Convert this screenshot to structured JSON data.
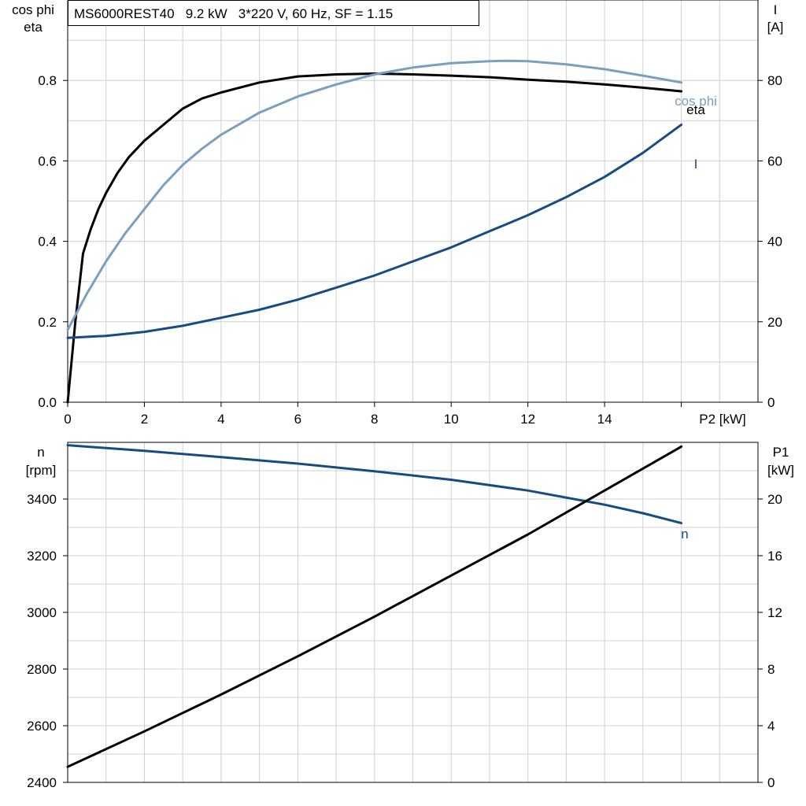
{
  "chart_data": [
    {
      "type": "line",
      "title": "MS6000REST40   9.2 kW   3*220 V, 60 Hz, SF = 1.15",
      "xlabel": "P2 [kW]",
      "ylabel_left": [
        "cos phi",
        "eta"
      ],
      "ylabel_right": [
        "I",
        "[A]"
      ],
      "xlim": [
        0,
        18
      ],
      "ylim_left": [
        0,
        1.0
      ],
      "ylim_right": [
        0,
        100
      ],
      "x_ticks": [
        0,
        2,
        4,
        6,
        8,
        10,
        12,
        14
      ],
      "y_ticks_left": [
        0.0,
        0.2,
        0.4,
        0.6,
        0.8
      ],
      "y_ticks_right": [
        0,
        20,
        40,
        60,
        80
      ],
      "grid": true,
      "series": [
        {
          "name": "eta",
          "axis": "left",
          "color": "#000000",
          "x": [
            0,
            0.2,
            0.4,
            0.6,
            0.8,
            1.0,
            1.3,
            1.6,
            2.0,
            2.5,
            3.0,
            3.5,
            4.0,
            5.0,
            6.0,
            7.0,
            8.0,
            9.0,
            10.0,
            11.0,
            12.0,
            13.0,
            14.0,
            15.0,
            16.0
          ],
          "values": [
            0.0,
            0.2,
            0.37,
            0.43,
            0.48,
            0.52,
            0.57,
            0.61,
            0.65,
            0.69,
            0.73,
            0.755,
            0.77,
            0.795,
            0.81,
            0.815,
            0.817,
            0.815,
            0.812,
            0.808,
            0.802,
            0.797,
            0.79,
            0.782,
            0.773
          ]
        },
        {
          "name": "cos phi",
          "axis": "left",
          "color": "#7a9fc0",
          "x": [
            0,
            0.5,
            1.0,
            1.5,
            2.0,
            2.5,
            3.0,
            3.5,
            4.0,
            5.0,
            6.0,
            7.0,
            8.0,
            9.0,
            10.0,
            11.0,
            11.5,
            12.0,
            13.0,
            14.0,
            15.0,
            16.0
          ],
          "values": [
            0.18,
            0.27,
            0.35,
            0.42,
            0.48,
            0.54,
            0.59,
            0.63,
            0.665,
            0.72,
            0.76,
            0.79,
            0.815,
            0.832,
            0.843,
            0.848,
            0.849,
            0.848,
            0.84,
            0.828,
            0.812,
            0.795
          ]
        },
        {
          "name": "I",
          "axis": "right",
          "color": "#174c82",
          "x": [
            0,
            1,
            2,
            3,
            4,
            5,
            6,
            7,
            8,
            9,
            10,
            11,
            12,
            13,
            14,
            15,
            16
          ],
          "values": [
            16,
            16.5,
            17.5,
            19,
            21,
            23,
            25.5,
            28.5,
            31.5,
            35,
            38.5,
            42.5,
            46.5,
            51,
            56,
            62,
            69
          ]
        }
      ],
      "labels": [
        "cos phi",
        "eta",
        "I"
      ]
    },
    {
      "type": "line",
      "xlim": [
        0,
        18
      ],
      "ylabel_left": [
        "n",
        "[rpm]"
      ],
      "ylabel_right": [
        "P1",
        "[kW]"
      ],
      "ylim_left": [
        2400,
        3600
      ],
      "ylim_right": [
        0,
        24
      ],
      "y_ticks_left": [
        2400,
        2600,
        2800,
        3000,
        3200,
        3400
      ],
      "y_ticks_right": [
        0,
        4,
        8,
        12,
        16,
        20
      ],
      "grid": true,
      "series": [
        {
          "name": "n",
          "axis": "left",
          "color": "#174c82",
          "x": [
            0,
            2,
            4,
            6,
            8,
            10,
            12,
            14,
            15,
            16
          ],
          "values": [
            3590,
            3570,
            3548,
            3525,
            3498,
            3468,
            3430,
            3380,
            3350,
            3315
          ]
        },
        {
          "axis": "right",
          "color": "#000000",
          "x": [
            0,
            2,
            4,
            6,
            8,
            10,
            12,
            14,
            16
          ],
          "values": [
            1.1,
            3.6,
            6.2,
            8.9,
            11.7,
            14.6,
            17.5,
            20.6,
            23.7
          ]
        }
      ],
      "labels": [
        "n"
      ]
    }
  ]
}
